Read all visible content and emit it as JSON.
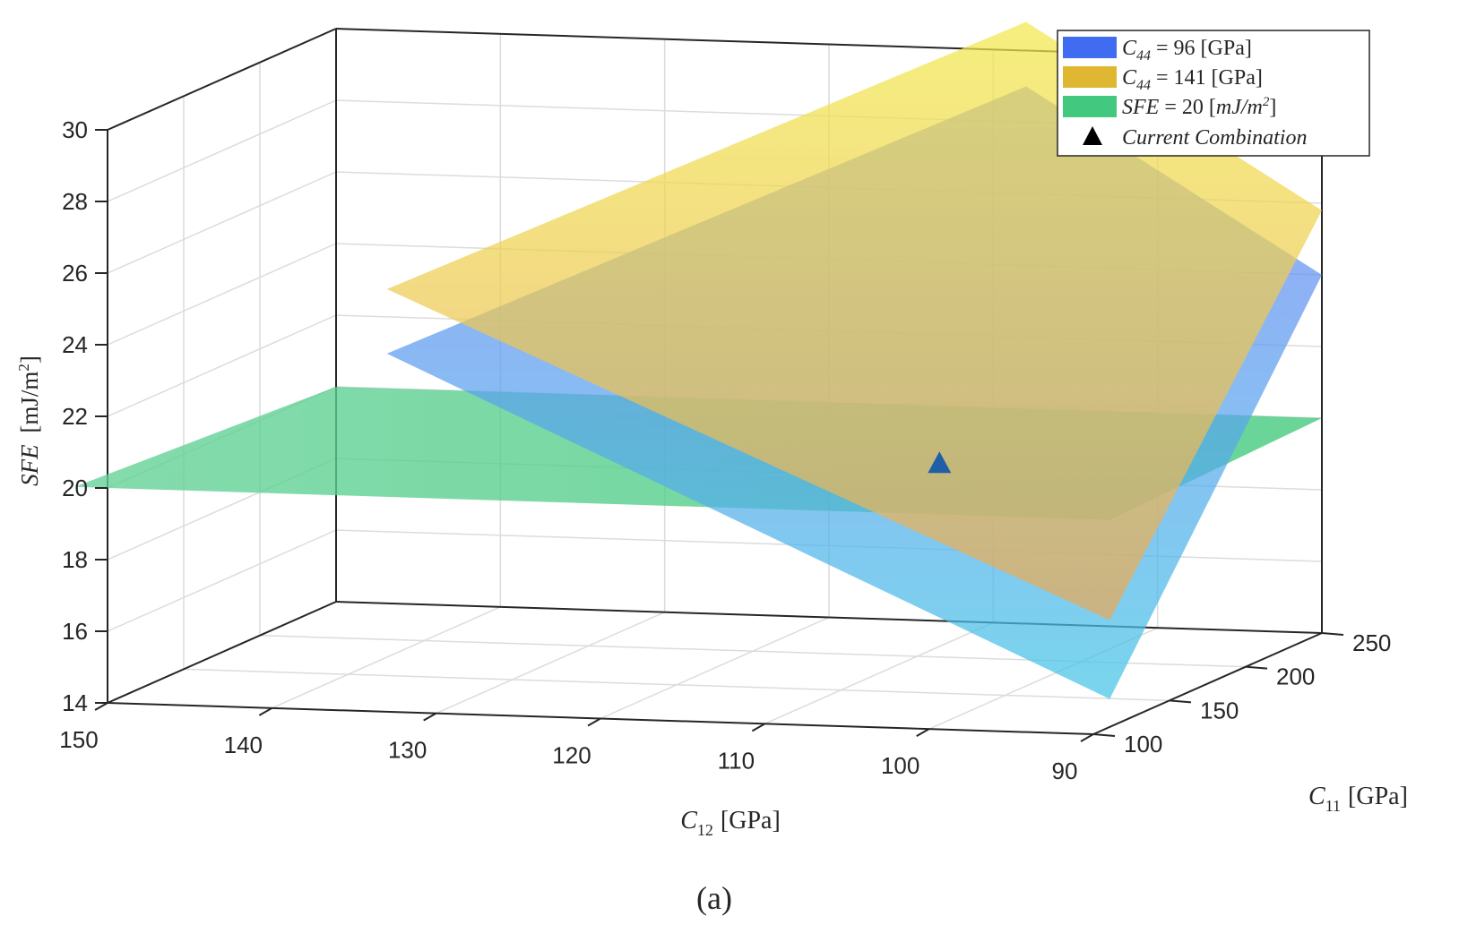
{
  "chart_data": {
    "type": "surface3d",
    "panel_label": "(a)",
    "zlabel": {
      "symbol": "SFE",
      "unit": "[mJ/m",
      "sup": "2",
      "close": "]"
    },
    "xlabel": {
      "sym": "C",
      "sub": "12",
      "unit": "[GPa]"
    },
    "ylabel": {
      "sym": "C",
      "sub": "11",
      "unit": "[GPa]"
    },
    "xlim": [
      90,
      150
    ],
    "ylim": [
      100,
      250
    ],
    "zlim": [
      14,
      30
    ],
    "x_ticks": [
      150,
      140,
      130,
      120,
      110,
      100,
      90
    ],
    "y_ticks": [
      100,
      150,
      200,
      250
    ],
    "z_ticks": [
      14,
      16,
      18,
      20,
      22,
      24,
      26,
      28,
      30
    ],
    "grid": true,
    "legend_position": "top-right",
    "series": [
      {
        "name": "C44 = 96 [GPa]",
        "label": {
          "sym": "C",
          "sub": "44",
          "rest": " = 96 [GPa]"
        },
        "type": "plane",
        "color_high": "#6f7cf6",
        "color_low": "#45c6e6",
        "legend_color": "#3f6cf0",
        "corners_xyz": [
          [
            133,
            100,
            24.0
          ],
          [
            89,
            100,
            15.0
          ],
          [
            90,
            250,
            24.0
          ],
          [
            108,
            250,
            29.0
          ]
        ]
      },
      {
        "name": "C44 = 141 [GPa]",
        "label": {
          "sym": "C",
          "sub": "44",
          "rest": " = 141 [GPa]"
        },
        "type": "plane",
        "color_high": "#f2e94c",
        "color_low": "#e8a85a",
        "legend_color": "#e0b733",
        "corners_xyz": [
          [
            133,
            100,
            25.8
          ],
          [
            89,
            100,
            17.2
          ],
          [
            90,
            250,
            25.8
          ],
          [
            108,
            250,
            30.8
          ]
        ]
      },
      {
        "name": "SFE = 20 [mJ/m2]",
        "label": {
          "sym": "SFE",
          "rest": " = 20 [",
          "unitital": "mJ/m",
          "sup": "2",
          "close": "]"
        },
        "type": "plane",
        "color_high": "#62d196",
        "color_low": "#3ec979",
        "legend_color": "#43c87f",
        "corners_xyz": [
          [
            152,
            100,
            20
          ],
          [
            89,
            100,
            20
          ],
          [
            90,
            250,
            20
          ],
          [
            150,
            250,
            20
          ]
        ]
      },
      {
        "name": "Current Combination",
        "label": {
          "ital": "Current Combination"
        },
        "type": "marker",
        "marker": "triangle",
        "color": "#1f5fa8",
        "legend_color": "#000000",
        "points": [
          {
            "x": 104,
            "y": 150,
            "z": 20.4
          }
        ]
      }
    ]
  }
}
